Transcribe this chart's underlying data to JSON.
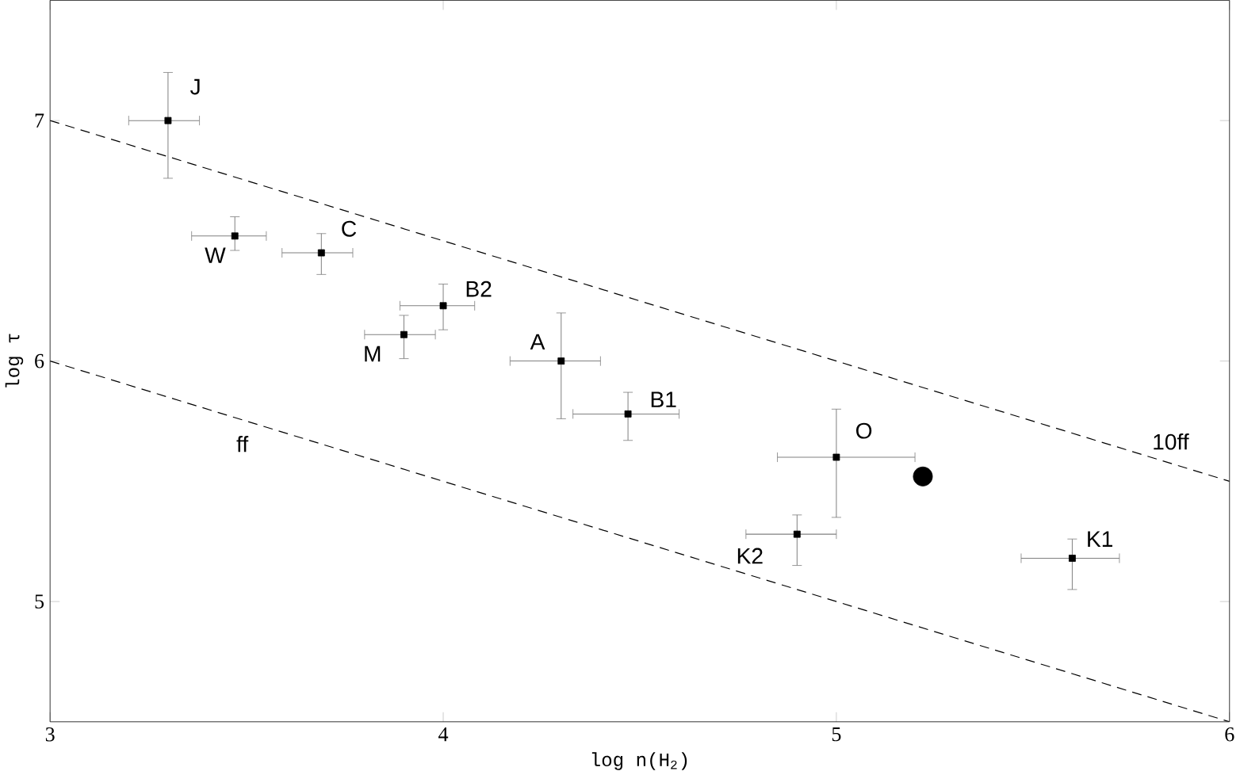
{
  "chart_data": {
    "type": "scatter",
    "xlabel": "log n(H$_{2}$)",
    "ylabel": "log τ",
    "xlim": [
      3,
      6
    ],
    "ylim": [
      4.5,
      7.5
    ],
    "xticks": [
      3,
      4,
      5,
      6
    ],
    "yticks": [
      5,
      6,
      7
    ],
    "grid": false,
    "series": [
      {
        "color": "#000000",
        "marker": "square",
        "x": [
          3.3,
          3.47,
          3.69,
          4.0,
          3.9,
          4.3,
          4.47,
          5.0,
          4.9,
          5.6
        ],
        "values": [
          7.0,
          6.52,
          6.45,
          6.23,
          6.11,
          6.0,
          5.78,
          5.6,
          5.28,
          5.18
        ],
        "xerrors": [
          [
            3.2,
            3.38
          ],
          [
            3.36,
            3.55
          ],
          [
            3.59,
            3.77
          ],
          [
            3.89,
            4.08
          ],
          [
            3.8,
            3.98
          ],
          [
            4.17,
            4.4
          ],
          [
            4.33,
            4.6
          ],
          [
            4.85,
            5.2
          ],
          [
            4.77,
            5.0
          ],
          [
            5.47,
            5.72
          ]
        ],
        "errors": [
          [
            6.76,
            7.2
          ],
          [
            6.46,
            6.6
          ],
          [
            6.36,
            6.53
          ],
          [
            6.13,
            6.32
          ],
          [
            6.01,
            6.19
          ],
          [
            5.76,
            6.2
          ],
          [
            5.67,
            5.87
          ],
          [
            5.35,
            5.8
          ],
          [
            5.15,
            5.36
          ],
          [
            5.05,
            5.26
          ]
        ]
      },
      {
        "color": "#000000",
        "marker": "circle",
        "x": [
          5.22
        ],
        "values": [
          5.52
        ]
      },
      {
        "type": "line",
        "color": "#000000",
        "line_style": "dashed",
        "marker": "none",
        "x": [
          3,
          6
        ],
        "values": [
          7.0,
          5.5
        ]
      },
      {
        "type": "line",
        "color": "#000000",
        "line_style": "dashed",
        "marker": "none",
        "x": [
          3,
          6
        ],
        "values": [
          6.0,
          4.5
        ]
      }
    ],
    "annotations": [
      "J",
      "W",
      "C",
      "B2",
      "M",
      "A",
      "B1",
      "O",
      "K2",
      "K1",
      "10ff",
      "ff"
    ]
  }
}
